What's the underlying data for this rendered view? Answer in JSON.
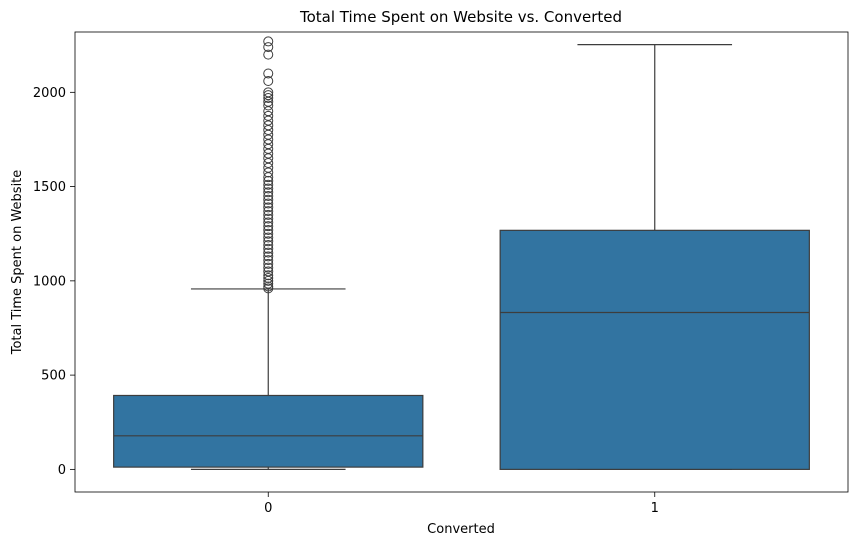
{
  "chart_data": {
    "type": "box",
    "title": "Total Time Spent on Website vs. Converted",
    "xlabel": "Converted",
    "ylabel": "Total Time Spent on Website",
    "categories": [
      "0",
      "1"
    ],
    "ylim": [
      -120,
      2320
    ],
    "yticks": [
      0,
      500,
      1000,
      1500,
      2000
    ],
    "grid": false,
    "legend": "none",
    "box_color": "#3274a1",
    "line_color": "#3d3d3d",
    "boxes": [
      {
        "category": "0",
        "min": 0,
        "q1": 12,
        "median": 178,
        "q3": 392,
        "whisker_high": 957,
        "outliers": [
          960,
          970,
          985,
          1000,
          1015,
          1030,
          1050,
          1070,
          1090,
          1110,
          1130,
          1150,
          1170,
          1190,
          1210,
          1230,
          1250,
          1270,
          1290,
          1310,
          1330,
          1350,
          1370,
          1390,
          1410,
          1430,
          1450,
          1470,
          1490,
          1510,
          1530,
          1550,
          1575,
          1600,
          1625,
          1650,
          1675,
          1700,
          1725,
          1750,
          1775,
          1800,
          1825,
          1850,
          1875,
          1900,
          1930,
          1950,
          1970,
          1985,
          2000,
          2060,
          2100,
          2200,
          2240,
          2270
        ]
      },
      {
        "category": "1",
        "min": 0,
        "q1": 0,
        "median": 832,
        "q3": 1268,
        "whisker_high": 2253,
        "outliers": []
      }
    ]
  }
}
